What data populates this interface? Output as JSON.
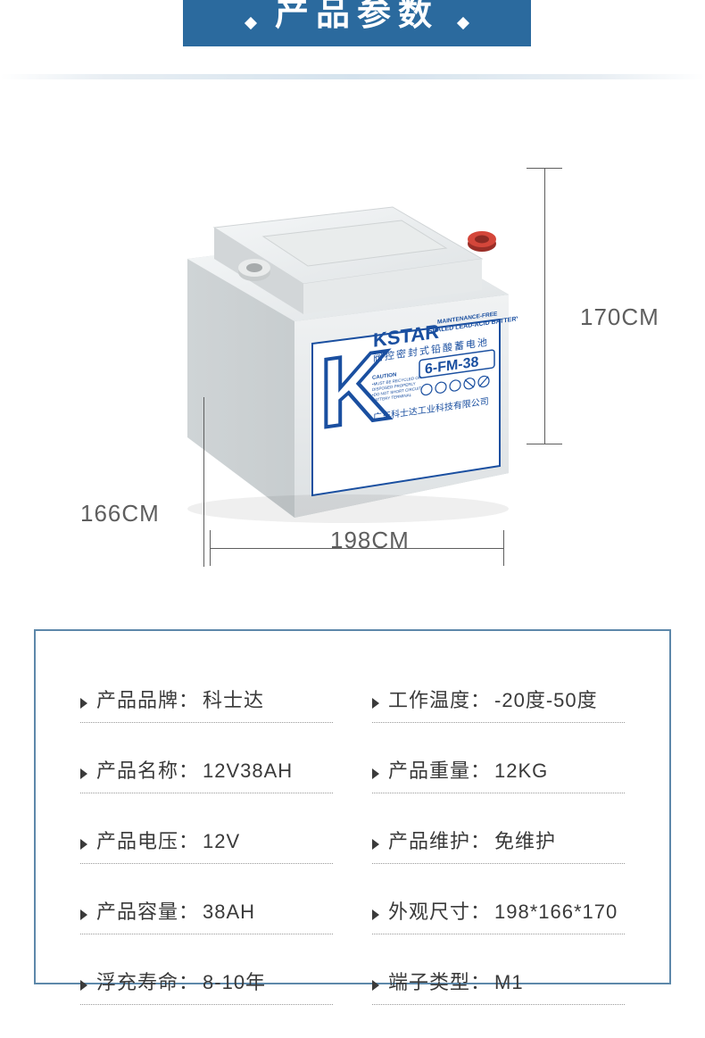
{
  "header": {
    "title": "产品参数"
  },
  "dimensions": {
    "height_label": "170CM",
    "width_label": "198CM",
    "depth_label": "166CM"
  },
  "product_label": {
    "brand": "KSTAR",
    "subtitle1": "MAINTENANCE-FREE",
    "subtitle2": "SEALED LEAD-ACID BATTERY",
    "chinese_sub": "阀控密封式铅酸蓄电池",
    "model": "6-FM-38",
    "company": "广东科士达工业科技有限公司"
  },
  "specs": [
    {
      "label": "产品品牌：",
      "value": "科士达"
    },
    {
      "label": "工作温度：",
      "value": "-20度-50度"
    },
    {
      "label": "产品名称：",
      "value": "12V38AH"
    },
    {
      "label": "产品重量：",
      "value": "12KG"
    },
    {
      "label": "产品电压：",
      "value": "12V"
    },
    {
      "label": "产品维护：",
      "value": "免维护"
    },
    {
      "label": "产品容量：",
      "value": "38AH"
    },
    {
      "label": "外观尺寸：",
      "value": "198*166*170"
    },
    {
      "label": "浮充寿命：",
      "value": "8-10年"
    },
    {
      "label": "端子类型：",
      "value": "M1"
    }
  ],
  "colors": {
    "banner_bg": "#2b6a9e",
    "border": "#5d88aa",
    "text": "#3a3a3a",
    "dim_line": "#5e5e5e",
    "label_blue": "#1a4fa0"
  }
}
